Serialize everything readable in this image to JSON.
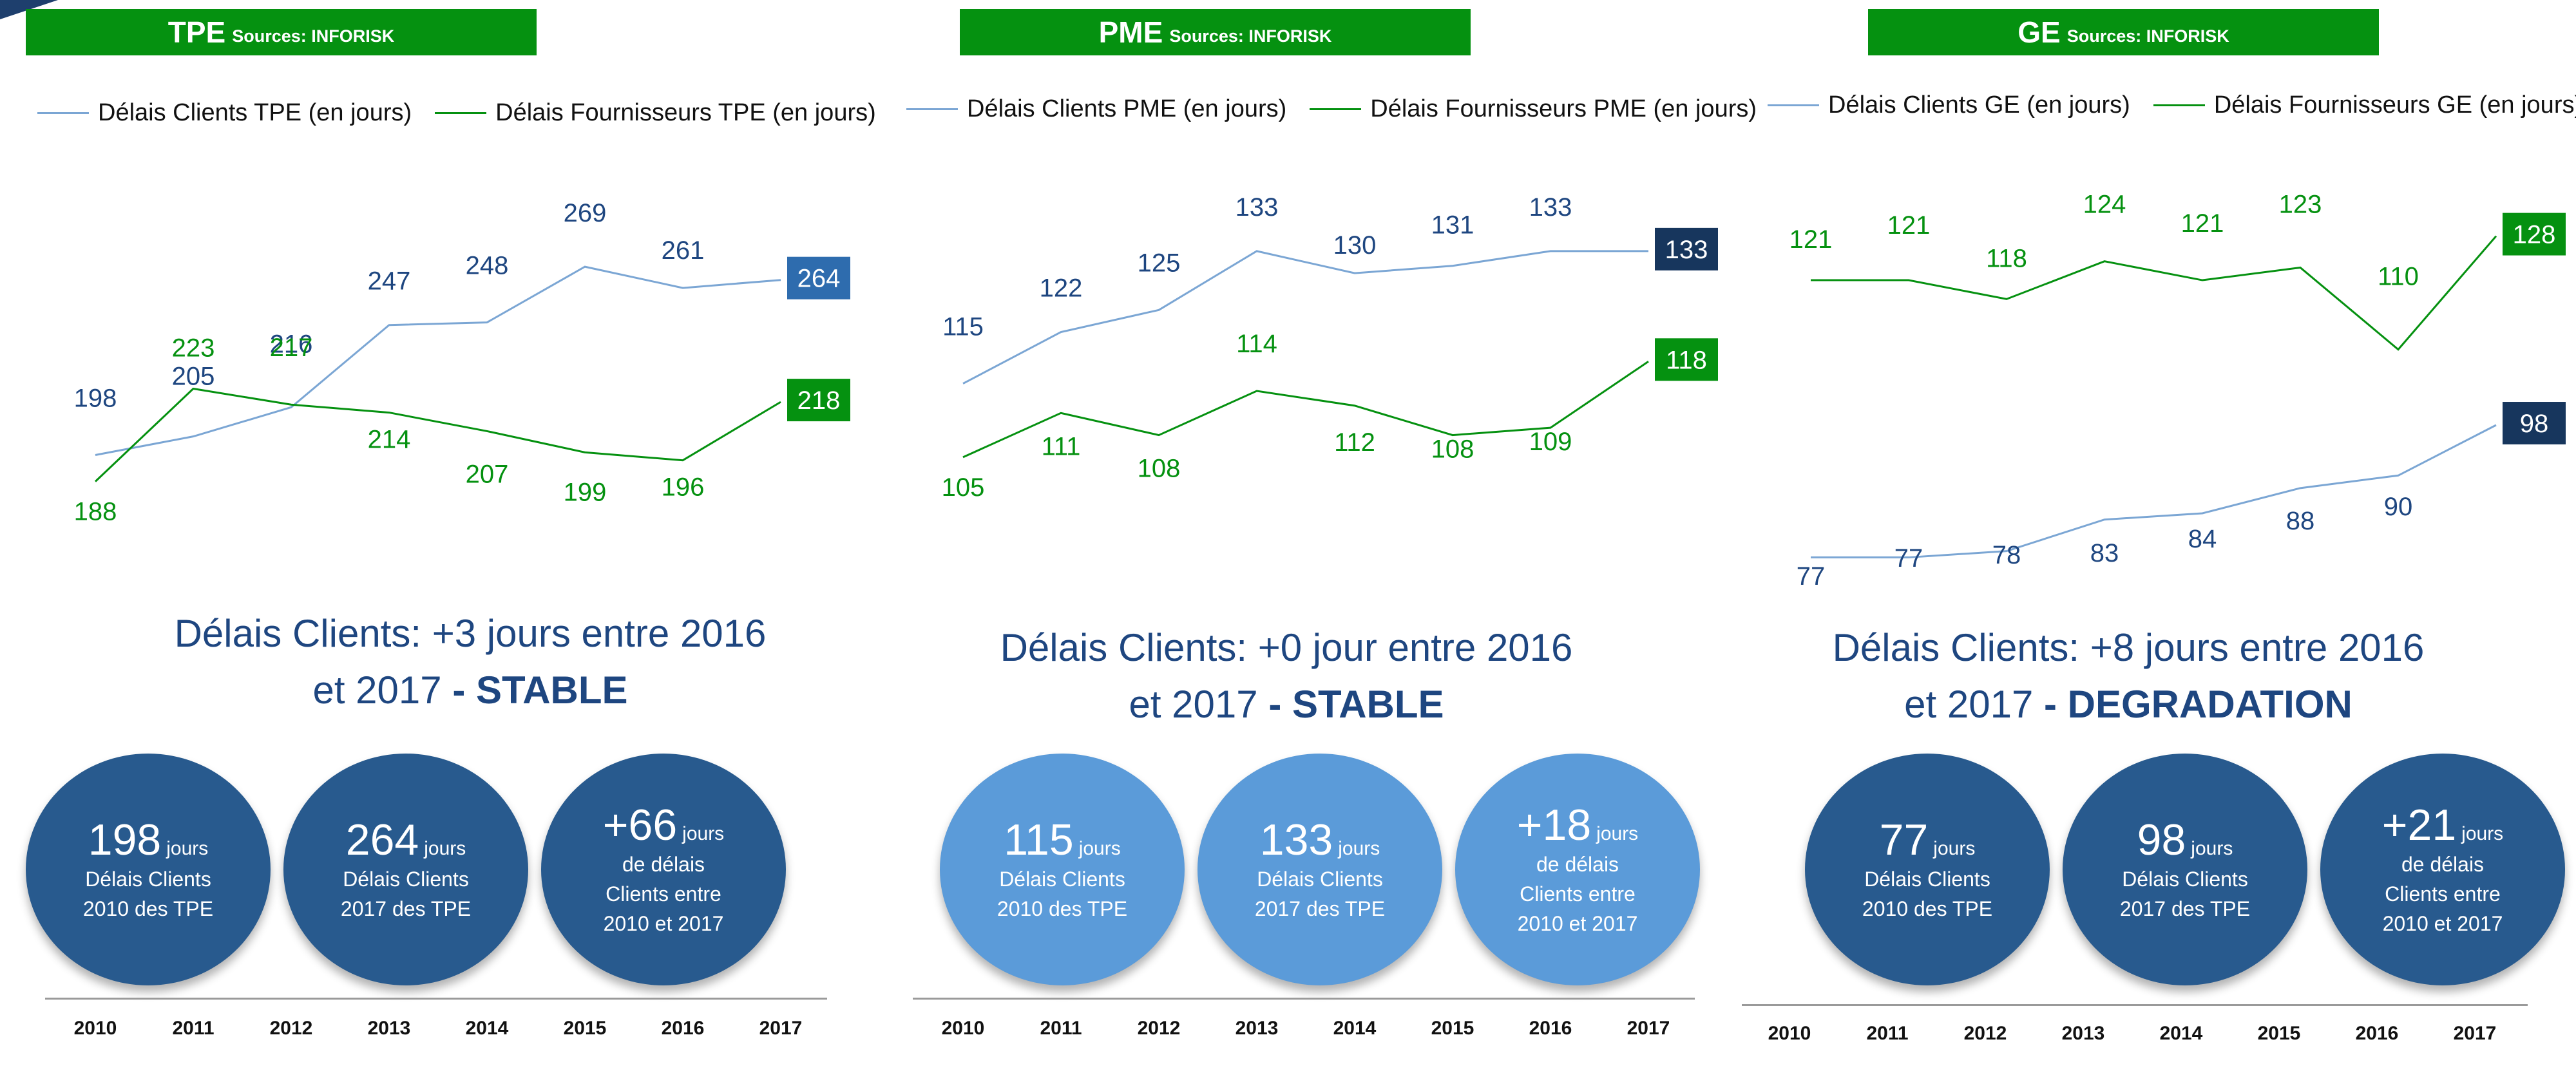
{
  "colors": {
    "green": "#059110",
    "blue_line": "#7ba6d4",
    "blue_text": "#1e4680",
    "dark_label": "#17365d",
    "mid_label": "#2e6cae",
    "bubble_dark": "#285a8e",
    "bubble_light": "#5b9bd9"
  },
  "chart_data": [
    {
      "type": "line",
      "title": "TPE",
      "source": "Sources: INFORISK",
      "x": [
        "2010",
        "2011",
        "2012",
        "2013",
        "2014",
        "2015",
        "2016",
        "2017"
      ],
      "series": [
        {
          "name": "Délais Clients TPE (en jours)",
          "values": [
            198,
            205,
            216,
            247,
            248,
            269,
            261,
            264
          ]
        },
        {
          "name": "Délais Fournisseurs TPE (en jours)",
          "values": [
            188,
            223,
            217,
            214,
            207,
            199,
            196,
            218
          ]
        }
      ],
      "legend_position": "top",
      "grid": false
    },
    {
      "type": "line",
      "title": "PME",
      "source": "Sources: INFORISK",
      "x": [
        "2010",
        "2011",
        "2012",
        "2013",
        "2014",
        "2015",
        "2016",
        "2017"
      ],
      "series": [
        {
          "name": "Délais Clients PME (en jours)",
          "values": [
            115,
            122,
            125,
            133,
            130,
            131,
            133,
            133
          ]
        },
        {
          "name": "Délais Fournisseurs PME (en jours)",
          "values": [
            105,
            111,
            108,
            114,
            112,
            108,
            109,
            118
          ]
        }
      ],
      "legend_position": "top",
      "grid": false
    },
    {
      "type": "line",
      "title": "GE",
      "source": "Sources: INFORISK",
      "x": [
        "2010",
        "2011",
        "2012",
        "2013",
        "2014",
        "2015",
        "2016",
        "2017"
      ],
      "series": [
        {
          "name": "Délais Clients GE (en jours)",
          "values": [
            77,
            77,
            78,
            83,
            84,
            88,
            90,
            98
          ]
        },
        {
          "name": "Délais Fournisseurs GE (en jours)",
          "values": [
            121,
            121,
            118,
            124,
            121,
            123,
            110,
            128
          ]
        }
      ],
      "legend_position": "top",
      "grid": false
    }
  ],
  "panels": [
    {
      "subtitle_line1": "Délais Clients: +3 jours entre 2016",
      "subtitle_line2": "et 2017",
      "subtitle_sep": " - ",
      "subtitle_keyword": "STABLE",
      "bubble_style": "dark",
      "bubbles": [
        {
          "value": "198",
          "unit": "jours",
          "line1": "Délais Clients",
          "line2": "2010 des TPE",
          "line3": ""
        },
        {
          "value": "264",
          "unit": "jours",
          "line1": "Délais Clients",
          "line2": "2017 des TPE",
          "line3": ""
        },
        {
          "value": "+66",
          "unit": "jours",
          "line1": "de délais",
          "line2": "Clients  entre",
          "line3": "2010 et 2017"
        }
      ]
    },
    {
      "subtitle_line1": "Délais Clients: +0 jour entre 2016",
      "subtitle_line2": "et 2017",
      "subtitle_sep": " - ",
      "subtitle_keyword": "STABLE",
      "bubble_style": "light",
      "bubbles": [
        {
          "value": "115",
          "unit": "jours",
          "line1": "Délais Clients",
          "line2": "2010 des TPE",
          "line3": ""
        },
        {
          "value": "133",
          "unit": "jours",
          "line1": "Délais Clients",
          "line2": "2017 des TPE",
          "line3": ""
        },
        {
          "value": "+18",
          "unit": "jours",
          "line1": "de délais",
          "line2": "Clients  entre",
          "line3": "2010 et 2017"
        }
      ]
    },
    {
      "subtitle_line1": "Délais Clients: +8 jours entre 2016",
      "subtitle_line2": "et 2017",
      "subtitle_sep": " - ",
      "subtitle_keyword": "DEGRADATION",
      "bubble_style": "dark",
      "bubbles": [
        {
          "value": "77",
          "unit": "jours",
          "line1": "Délais Clients",
          "line2": "2010 des TPE",
          "line3": ""
        },
        {
          "value": "98",
          "unit": "jours",
          "line1": "Délais Clients",
          "line2": "2017 des TPE",
          "line3": ""
        },
        {
          "value": "+21",
          "unit": "jours",
          "line1": "de délais",
          "line2": "Clients  entre",
          "line3": "2010 et 2017"
        }
      ]
    }
  ]
}
